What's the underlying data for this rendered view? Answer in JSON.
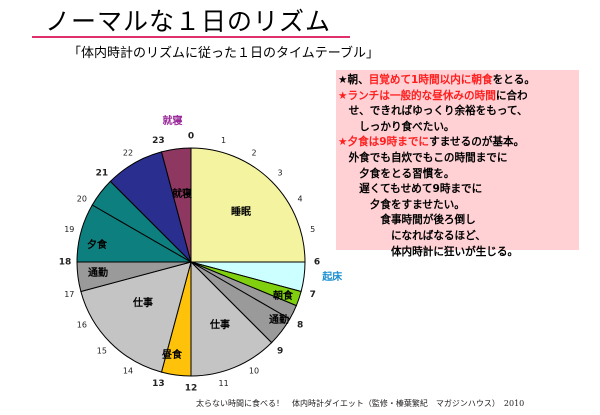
{
  "page": {
    "title": "ノーマルな１日のリズム",
    "subtitle": "「体内時計のリズムに従った１日のタイムテーブル」",
    "footer": "太らない時間に食べる！　体内時計ダイエット（監修・榛葉繁紀　マガジンハウス）　2010",
    "accent_color": "#e0306a"
  },
  "notes": {
    "line1": [
      {
        "t": "★朝、",
        "red": false
      },
      {
        "t": "目覚めて1時間以内に朝食",
        "red": true
      },
      {
        "t": "をとる。",
        "red": false
      }
    ],
    "line2": [
      {
        "t": "★ランチは一般的な昼休みの時間",
        "red": true
      },
      {
        "t": "に合わ",
        "red": false
      }
    ],
    "line3": [
      {
        "t": "　せ、できればゆっくり余裕をもって、",
        "red": false
      }
    ],
    "line4": [
      {
        "t": "　　しっかり食べたい。",
        "red": false
      }
    ],
    "line5": [
      {
        "t": "★夕食は9時までに",
        "red": true
      },
      {
        "t": "すませるのが基本。",
        "red": false
      }
    ],
    "line6": [
      {
        "t": "　外食でも自炊でもこの時間までに",
        "red": false
      }
    ],
    "line7": [
      {
        "t": "　　夕食をとる習慣を。",
        "red": false
      }
    ],
    "line8": [
      {
        "t": "　　遅くてもせめて9時までに",
        "red": false
      }
    ],
    "line9": [
      {
        "t": "　　　夕食をすませたい。",
        "red": false
      }
    ],
    "line10": [
      {
        "t": "　　　　食事時間が後ろ倒し",
        "red": false
      }
    ],
    "line11": [
      {
        "t": "　　　　　になればなるほど、",
        "red": false
      }
    ],
    "line12": [
      {
        "t": "　　　　　体内時計に狂いが生じる。",
        "red": false
      }
    ]
  },
  "chart_data": {
    "type": "pie",
    "title": "",
    "start_angle_deg": 0,
    "direction": "clockwise",
    "slices": [
      {
        "label": "睡眠",
        "start_hour": 0,
        "end_hour": 6,
        "color": "#f4f4a0"
      },
      {
        "label": "",
        "start_hour": 6,
        "end_hour": 7,
        "color": "#ccffff"
      },
      {
        "label": "朝食",
        "start_hour": 7,
        "end_hour": 7.5,
        "color": "#80d010"
      },
      {
        "label": "",
        "start_hour": 7.5,
        "end_hour": 8,
        "color": "#9a9a9a"
      },
      {
        "label": "通勤",
        "start_hour": 8,
        "end_hour": 9,
        "color": "#9a9a9a"
      },
      {
        "label": "仕事",
        "start_hour": 9,
        "end_hour": 12,
        "color": "#c4c4c4"
      },
      {
        "label": "昼食",
        "start_hour": 12,
        "end_hour": 13,
        "color": "#ffc20a"
      },
      {
        "label": "仕事",
        "start_hour": 13,
        "end_hour": 17,
        "color": "#c4c4c4"
      },
      {
        "label": "通勤",
        "start_hour": 17,
        "end_hour": 18,
        "color": "#9a9a9a"
      },
      {
        "label": "夕食",
        "start_hour": 18,
        "end_hour": 20,
        "color": "#0e7f7f"
      },
      {
        "label": "",
        "start_hour": 20,
        "end_hour": 21,
        "color": "#0e7f7f"
      },
      {
        "label": "",
        "start_hour": 21,
        "end_hour": 23,
        "color": "#2a2e8f"
      },
      {
        "label": "就寝",
        "start_hour": 23,
        "end_hour": 24,
        "color": "#8e3760"
      }
    ],
    "hour_ticks": [
      "0",
      "1",
      "2",
      "3",
      "4",
      "5",
      "6",
      "7",
      "8",
      "9",
      "10",
      "11",
      "12",
      "13",
      "14",
      "15",
      "16",
      "17",
      "18",
      "19",
      "20",
      "21",
      "22",
      "23"
    ],
    "bold_ticks": [
      "0",
      "6",
      "7",
      "8",
      "9",
      "12",
      "13",
      "18",
      "21",
      "23"
    ],
    "annotations": [
      {
        "text": "起床",
        "hour": 6.4,
        "color": "#1a8fd0"
      },
      {
        "text": "就寝",
        "hour": 23.5,
        "color": "#9a2a9a"
      }
    ]
  }
}
